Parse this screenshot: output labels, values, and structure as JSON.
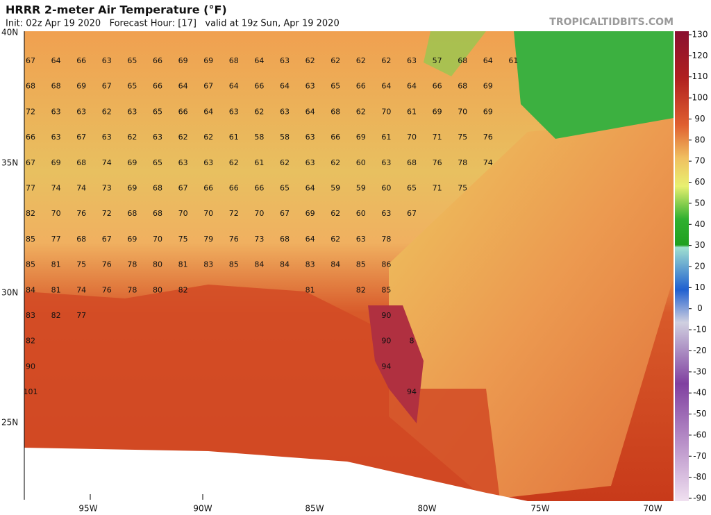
{
  "header": {
    "title": "HRRR 2-meter Air Temperature (°F)",
    "subtitle": "Init: 02z Apr 19 2020   Forecast Hour: [17]   valid at 19z Sun, Apr 19 2020",
    "site": "TROPICALTIDBITS.COM"
  },
  "map": {
    "latitude_labels": [
      "40N",
      "35N",
      "30N",
      "25N"
    ],
    "longitude_labels": [
      "95W",
      "90W",
      "85W",
      "80W",
      "75W",
      "70W"
    ],
    "temperature_rows": [
      [
        67,
        64,
        66,
        63,
        65,
        66,
        69,
        69,
        68,
        64,
        63,
        62,
        62,
        62,
        62,
        63,
        57,
        68,
        64,
        61
      ],
      [
        68,
        68,
        69,
        67,
        65,
        66,
        64,
        67,
        64,
        66,
        64,
        63,
        65,
        66,
        64,
        64,
        66,
        68,
        69,
        null
      ],
      [
        72,
        63,
        63,
        62,
        63,
        65,
        66,
        64,
        63,
        62,
        63,
        64,
        68,
        62,
        70,
        61,
        69,
        70,
        69,
        null
      ],
      [
        66,
        63,
        67,
        63,
        62,
        63,
        62,
        62,
        61,
        58,
        58,
        63,
        66,
        69,
        61,
        70,
        71,
        75,
        76,
        null
      ],
      [
        67,
        69,
        68,
        74,
        69,
        65,
        63,
        63,
        62,
        61,
        62,
        63,
        62,
        60,
        63,
        68,
        76,
        78,
        74,
        null
      ],
      [
        77,
        74,
        74,
        73,
        69,
        68,
        67,
        66,
        66,
        66,
        65,
        64,
        59,
        59,
        60,
        65,
        71,
        75,
        null,
        null
      ],
      [
        82,
        70,
        76,
        72,
        68,
        68,
        70,
        70,
        72,
        70,
        67,
        69,
        62,
        60,
        63,
        67,
        null,
        null,
        null,
        null
      ],
      [
        85,
        77,
        68,
        67,
        69,
        70,
        75,
        79,
        76,
        73,
        68,
        64,
        62,
        63,
        78,
        null,
        null,
        null,
        null,
        null
      ],
      [
        85,
        81,
        75,
        76,
        78,
        80,
        81,
        83,
        85,
        84,
        84,
        83,
        84,
        85,
        86,
        null,
        null,
        null,
        null,
        null
      ],
      [
        84,
        81,
        74,
        76,
        78,
        80,
        82,
        null,
        null,
        null,
        null,
        81,
        null,
        82,
        85,
        null,
        null,
        null,
        null,
        null
      ],
      [
        83,
        82,
        77,
        null,
        null,
        null,
        null,
        null,
        null,
        null,
        null,
        null,
        null,
        null,
        90,
        null,
        null,
        null,
        null,
        null
      ],
      [
        82,
        null,
        null,
        null,
        null,
        null,
        null,
        null,
        null,
        null,
        null,
        null,
        null,
        null,
        90,
        8,
        null,
        null,
        null,
        null
      ],
      [
        90,
        null,
        null,
        null,
        null,
        null,
        null,
        null,
        null,
        null,
        null,
        null,
        null,
        null,
        94,
        null,
        null,
        null,
        null,
        null
      ],
      [
        101,
        null,
        null,
        null,
        null,
        null,
        null,
        null,
        null,
        null,
        null,
        null,
        null,
        null,
        null,
        94,
        null,
        null,
        null,
        null
      ]
    ]
  },
  "colorbar": {
    "ticks": [
      130,
      120,
      110,
      100,
      90,
      80,
      70,
      60,
      50,
      40,
      30,
      20,
      10,
      0,
      -10,
      -20,
      -30,
      -40,
      -50,
      -60,
      -70,
      -80,
      -90
    ]
  }
}
